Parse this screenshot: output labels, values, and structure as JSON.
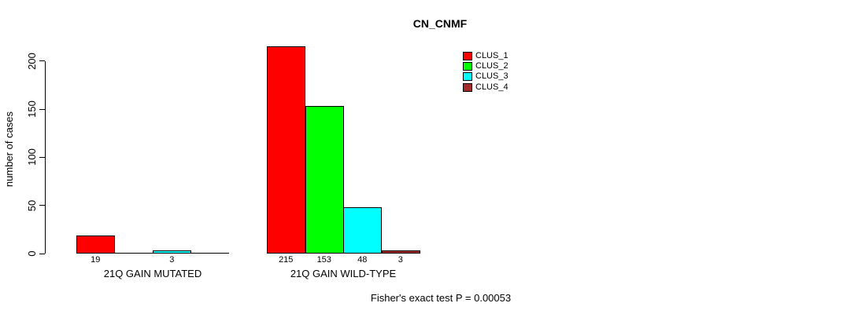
{
  "title": "CN_CNMF",
  "y_axis": {
    "label": "number of cases",
    "ticks": [
      0,
      50,
      100,
      150,
      200
    ]
  },
  "x_axis": {
    "categories": [
      "21Q GAIN MUTATED",
      "21Q GAIN WILD-TYPE"
    ]
  },
  "legend": {
    "items": [
      {
        "label": "CLUS_1",
        "color": "#FF0000"
      },
      {
        "label": "CLUS_2",
        "color": "#00FF00"
      },
      {
        "label": "CLUS_3",
        "color": "#00FFFF"
      },
      {
        "label": "CLUS_4",
        "color": "#A52A2A"
      }
    ]
  },
  "annotation": "Fisher's exact test P = 0.00053",
  "chart_data": {
    "type": "bar",
    "title": "CN_CNMF",
    "xlabel": "",
    "ylabel": "number of cases",
    "ylim": [
      0,
      200
    ],
    "yticks": [
      0,
      50,
      100,
      150,
      200
    ],
    "grid": false,
    "legend_position": "top-right",
    "categories": [
      "21Q GAIN MUTATED",
      "21Q GAIN WILD-TYPE"
    ],
    "series": [
      {
        "name": "CLUS_1",
        "color": "#FF0000",
        "values": [
          19,
          215
        ]
      },
      {
        "name": "CLUS_2",
        "color": "#00FF00",
        "values": [
          0,
          153
        ]
      },
      {
        "name": "CLUS_3",
        "color": "#00FFFF",
        "values": [
          3,
          48
        ]
      },
      {
        "name": "CLUS_4",
        "color": "#A52A2A",
        "values": [
          0,
          3
        ]
      }
    ],
    "bar_value_labels": [
      [
        "19",
        "",
        "3",
        ""
      ],
      [
        "215",
        "153",
        "48",
        "3"
      ]
    ],
    "annotation": "Fisher's exact test P = 0.00053"
  }
}
